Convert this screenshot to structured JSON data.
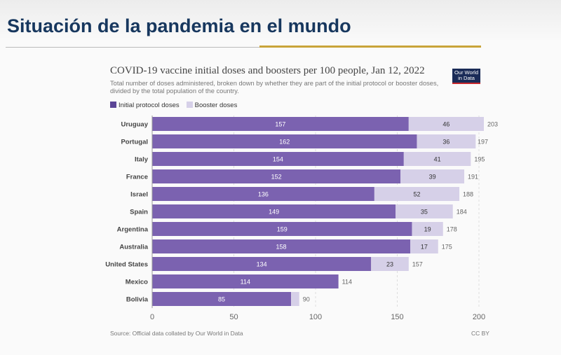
{
  "slide": {
    "title": "Situación de la pandemia en el mundo"
  },
  "chart_data": {
    "type": "bar",
    "stacked": true,
    "orientation": "horizontal",
    "title": "COVID-19 vaccine initial doses and boosters per 100 people, Jan 12, 2022",
    "subtitle": "Total number of doses administered, broken down by whether they are part of the initial protocol or booster doses, divided by the total population of the country.",
    "categories": [
      "Uruguay",
      "Portugal",
      "Italy",
      "France",
      "Israel",
      "Spain",
      "Argentina",
      "Australia",
      "United States",
      "Mexico",
      "Bolivia"
    ],
    "series": [
      {
        "name": "Initial protocol doses",
        "color": "#7b62b0",
        "values": [
          157,
          162,
          154,
          152,
          136,
          149,
          159,
          158,
          134,
          114,
          85
        ]
      },
      {
        "name": "Booster doses",
        "color": "#d6d0e8",
        "values": [
          46,
          36,
          41,
          39,
          52,
          35,
          19,
          17,
          23,
          0,
          5
        ]
      }
    ],
    "totals": [
      203,
      197,
      195,
      191,
      188,
      184,
      178,
      175,
      157,
      114,
      90
    ],
    "booster_labels_shown": [
      true,
      true,
      true,
      true,
      true,
      true,
      true,
      true,
      true,
      false,
      false
    ],
    "xlim": [
      0,
      200
    ],
    "xticks": [
      0,
      50,
      100,
      150,
      200
    ],
    "grid": true,
    "legend_position": "top-left",
    "source": "Source: Official data collated by Our World in Data",
    "license": "CC BY",
    "logo": "Our World in Data"
  }
}
